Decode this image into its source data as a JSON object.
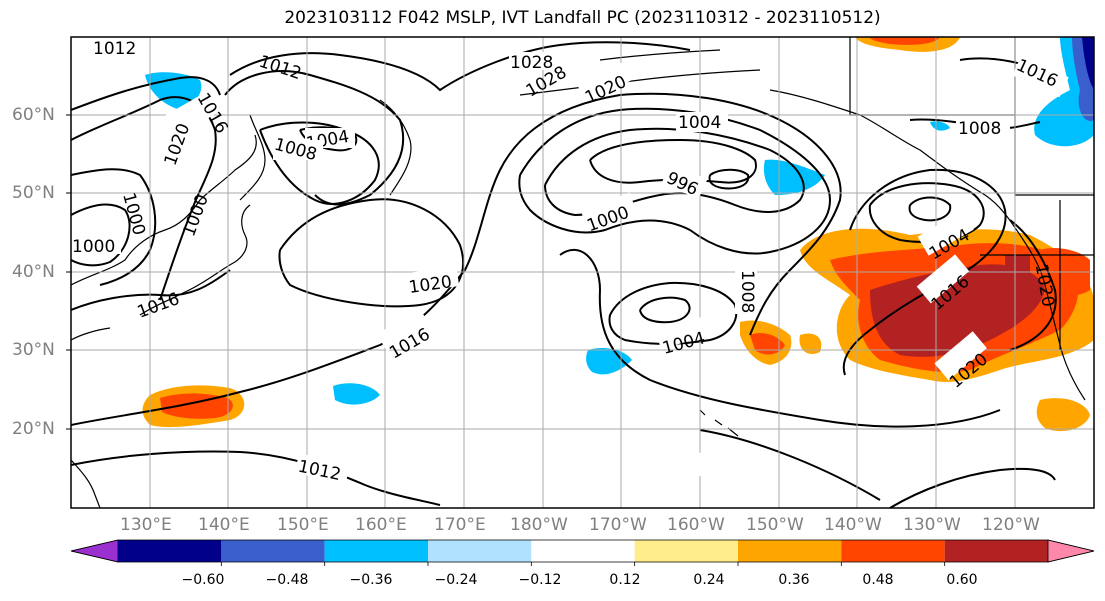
{
  "title": "2023103112 F042 MSLP, IVT Landfall PC (2023110312 - 2023110512)",
  "lat_labels": [
    "60°N",
    "50°N",
    "40°N",
    "30°N",
    "20°N"
  ],
  "lon_labels": [
    "130°E",
    "140°E",
    "150°E",
    "160°E",
    "170°E",
    "180°W",
    "170°W",
    "160°W",
    "150°W",
    "140°W",
    "130°W",
    "120°W"
  ],
  "colorbar": {
    "ticks": [
      "−0.60",
      "−0.48",
      "−0.36",
      "−0.24",
      "−0.12",
      "0.12",
      "0.24",
      "0.36",
      "0.48",
      "0.60"
    ],
    "colors": [
      "#9b30d0",
      "#00008b",
      "#3a5fcd",
      "#00bfff",
      "#b0e2ff",
      "#ffffff",
      "#ffec8b",
      "#ffa500",
      "#ff4500",
      "#b22222",
      "#ff88aa"
    ]
  },
  "contour_labels": [
    "1012",
    "1012",
    "1016",
    "1020",
    "1000",
    "1000",
    "1000",
    "1016",
    "1004",
    "1008",
    "1028",
    "1028",
    "1020",
    "1004",
    "996",
    "1000",
    "1020",
    "1016",
    "1004",
    "1008",
    "1004",
    "1016",
    "1020",
    "1020",
    "1016",
    "1008",
    "1012"
  ]
}
